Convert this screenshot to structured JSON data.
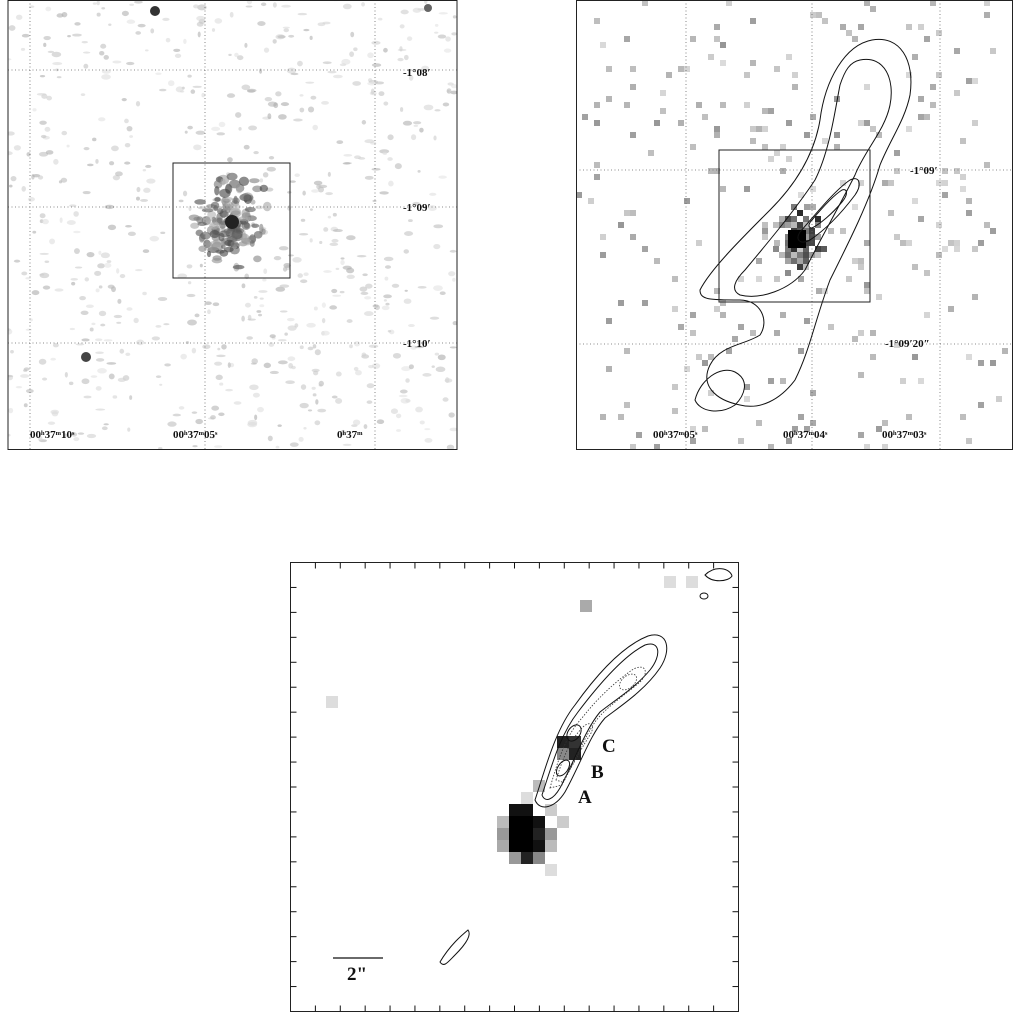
{
  "panel1": {
    "dec_labels": [
      "-1°08′",
      "-1°09′",
      "-1°10′"
    ],
    "ra_labels": [
      "00ʰ37ᵐ10ˢ",
      "00ʰ37ᵐ05ˢ",
      "0ʰ37ᵐ"
    ]
  },
  "panel2": {
    "dec_labels": [
      "-1°09′",
      "-1°09′20″"
    ],
    "ra_labels": [
      "00ʰ37ᵐ05ˢ",
      "00ʰ37ᵐ04ˢ",
      "00ʰ37ᵐ03ˢ"
    ]
  },
  "panel3": {
    "knot_labels": [
      "C",
      "B",
      "A"
    ],
    "scale_label": "2\""
  }
}
